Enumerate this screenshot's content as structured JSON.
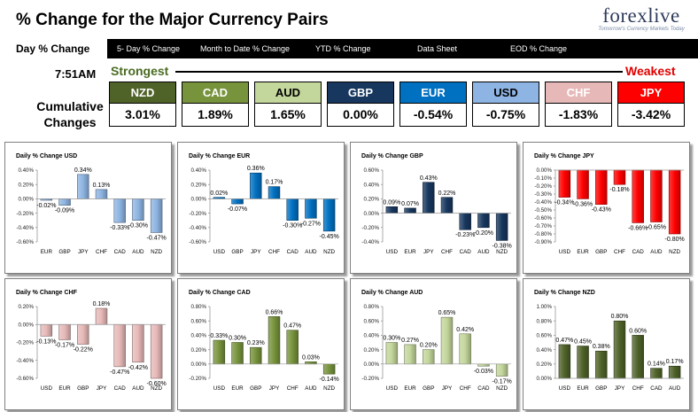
{
  "header": {
    "title": "% Change for the Major Currency Pairs",
    "logo_wordmark": "forexlive",
    "logo_tagline": "Tomorrow's Currency Markets Today"
  },
  "nav": {
    "items": [
      "Day % Change",
      "5- Day % Change",
      "Month to Date % Change",
      "YTD % Change",
      "Data Sheet",
      "EOD % Change"
    ]
  },
  "summary": {
    "time": "7:51AM",
    "strongest_label": "Strongest",
    "weakest_label": "Weakest",
    "cumulative_label_1": "Cumulative",
    "cumulative_label_2": "Changes",
    "currencies": [
      {
        "code": "NZD",
        "value": "3.01%",
        "color": "#4f6228",
        "text_color": "#ffffff"
      },
      {
        "code": "CAD",
        "value": "1.89%",
        "color": "#77933c",
        "text_color": "#ffffff"
      },
      {
        "code": "AUD",
        "value": "1.65%",
        "color": "#c3d69b",
        "text_color": "#000000"
      },
      {
        "code": "GBP",
        "value": "0.00%",
        "color": "#17375e",
        "text_color": "#ffffff"
      },
      {
        "code": "EUR",
        "value": "-0.54%",
        "color": "#0070c0",
        "text_color": "#ffffff"
      },
      {
        "code": "USD",
        "value": "-0.75%",
        "color": "#8db4e2",
        "text_color": "#000000"
      },
      {
        "code": "CHF",
        "value": "-1.83%",
        "color": "#e6b9b8",
        "text_color": "#ffffff"
      },
      {
        "code": "JPY",
        "value": "-3.42%",
        "color": "#ff0000",
        "text_color": "#ffffff"
      }
    ]
  },
  "chart_data": [
    {
      "type": "bar",
      "title": "Daily % Change USD",
      "categories": [
        "EUR",
        "GBP",
        "JPY",
        "CHF",
        "CAD",
        "AUD",
        "NZD"
      ],
      "values": [
        -0.02,
        -0.09,
        0.34,
        0.13,
        -0.33,
        -0.3,
        -0.47
      ],
      "labels": [
        "-0.02%",
        "-0.09%",
        "0.34%",
        "0.13%",
        "-0.33%",
        "-0.30%",
        "-0.47%"
      ],
      "yticks": [
        "0.40%",
        "0.20%",
        "0.00%",
        "-0.20%",
        "-0.40%",
        "-0.60%"
      ],
      "ylim": [
        -0.6,
        0.4
      ],
      "color": "#8db4e2"
    },
    {
      "type": "bar",
      "title": "Daily % Change EUR",
      "categories": [
        "USD",
        "GBP",
        "JPY",
        "CHF",
        "CAD",
        "AUD",
        "NZD"
      ],
      "values": [
        0.02,
        -0.07,
        0.36,
        0.17,
        -0.3,
        -0.27,
        -0.45
      ],
      "labels": [
        "0.02%",
        "-0.07%",
        "0.36%",
        "0.17%",
        "-0.30%",
        "-0.27%",
        "-0.45%"
      ],
      "yticks": [
        "0.40%",
        "0.20%",
        "0.00%",
        "-0.20%",
        "-0.40%",
        "-0.60%"
      ],
      "ylim": [
        -0.6,
        0.4
      ],
      "color": "#0070c0"
    },
    {
      "type": "bar",
      "title": "Daily % Change GBP",
      "categories": [
        "USD",
        "EUR",
        "JPY",
        "CHF",
        "CAD",
        "AUD",
        "NZD"
      ],
      "values": [
        0.09,
        0.07,
        0.43,
        0.22,
        -0.23,
        -0.2,
        -0.38
      ],
      "labels": [
        "0.09%",
        "0.07%",
        "0.43%",
        "0.22%",
        "-0.23%",
        "-0.20%",
        "-0.38%"
      ],
      "yticks": [
        "0.60%",
        "0.40%",
        "0.20%",
        "0.00%",
        "-0.20%",
        "-0.40%"
      ],
      "ylim": [
        -0.4,
        0.6
      ],
      "color": "#17375e"
    },
    {
      "type": "bar",
      "title": "Daily % Change JPY",
      "categories": [
        "USD",
        "EUR",
        "GBP",
        "CHF",
        "CAD",
        "AUD",
        "NZD"
      ],
      "values": [
        -0.34,
        -0.36,
        -0.43,
        -0.18,
        -0.66,
        -0.65,
        -0.8
      ],
      "labels": [
        "-0.34%",
        "-0.36%",
        "-0.43%",
        "-0.18%",
        "-0.66%",
        "-0.65%",
        "-0.80%"
      ],
      "yticks": [
        "0.00%",
        "-0.10%",
        "-0.20%",
        "-0.30%",
        "-0.40%",
        "-0.50%",
        "-0.60%",
        "-0.70%",
        "-0.80%",
        "-0.90%"
      ],
      "ylim": [
        -0.9,
        0.0
      ],
      "color": "#ff0000"
    },
    {
      "type": "bar",
      "title": "Daily % Change CHF",
      "categories": [
        "USD",
        "EUR",
        "GBP",
        "JPY",
        "CAD",
        "AUD",
        "NZD"
      ],
      "values": [
        -0.13,
        -0.17,
        -0.22,
        0.18,
        -0.47,
        -0.42,
        -0.6
      ],
      "labels": [
        "-0.13%",
        "-0.17%",
        "-0.22%",
        "0.18%",
        "-0.47%",
        "-0.42%",
        "-0.60%"
      ],
      "yticks": [
        "0.20%",
        "0.00%",
        "-0.20%",
        "-0.40%",
        "-0.60%"
      ],
      "ylim": [
        -0.6,
        0.2
      ],
      "color": "#e6b9b8"
    },
    {
      "type": "bar",
      "title": "Daily % Change CAD",
      "categories": [
        "USD",
        "EUR",
        "GBP",
        "JPY",
        "CHF",
        "AUD",
        "NZD"
      ],
      "values": [
        0.33,
        0.3,
        0.23,
        0.66,
        0.47,
        0.03,
        -0.14
      ],
      "labels": [
        "0.33%",
        "0.30%",
        "0.23%",
        "0.66%",
        "0.47%",
        "0.03%",
        "-0.14%"
      ],
      "yticks": [
        "0.80%",
        "0.60%",
        "0.40%",
        "0.20%",
        "0.00%",
        "-0.20%"
      ],
      "ylim": [
        -0.2,
        0.8
      ],
      "color": "#77933c"
    },
    {
      "type": "bar",
      "title": "Daily % Change AUD",
      "categories": [
        "USD",
        "EUR",
        "GBP",
        "JPY",
        "CHF",
        "CAD",
        "NZD"
      ],
      "values": [
        0.3,
        0.27,
        0.2,
        0.65,
        0.42,
        -0.03,
        -0.17
      ],
      "labels": [
        "0.30%",
        "0.27%",
        "0.20%",
        "0.65%",
        "0.42%",
        "-0.03%",
        "-0.17%"
      ],
      "yticks": [
        "0.80%",
        "0.60%",
        "0.40%",
        "0.20%",
        "0.00%",
        "-0.20%"
      ],
      "ylim": [
        -0.2,
        0.8
      ],
      "color": "#c3d69b"
    },
    {
      "type": "bar",
      "title": "Daily % Change NZD",
      "categories": [
        "USD",
        "EUR",
        "GBP",
        "JPY",
        "CHF",
        "CAD",
        "AUD"
      ],
      "values": [
        0.47,
        0.45,
        0.38,
        0.8,
        0.6,
        0.14,
        0.17
      ],
      "labels": [
        "0.47%",
        "0.45%",
        "0.38%",
        "0.80%",
        "0.60%",
        "0.14%",
        "0.17%"
      ],
      "yticks": [
        "1.00%",
        "0.80%",
        "0.60%",
        "0.40%",
        "0.20%",
        "0.00%"
      ],
      "ylim": [
        0.0,
        1.0
      ],
      "color": "#4f6228"
    }
  ]
}
